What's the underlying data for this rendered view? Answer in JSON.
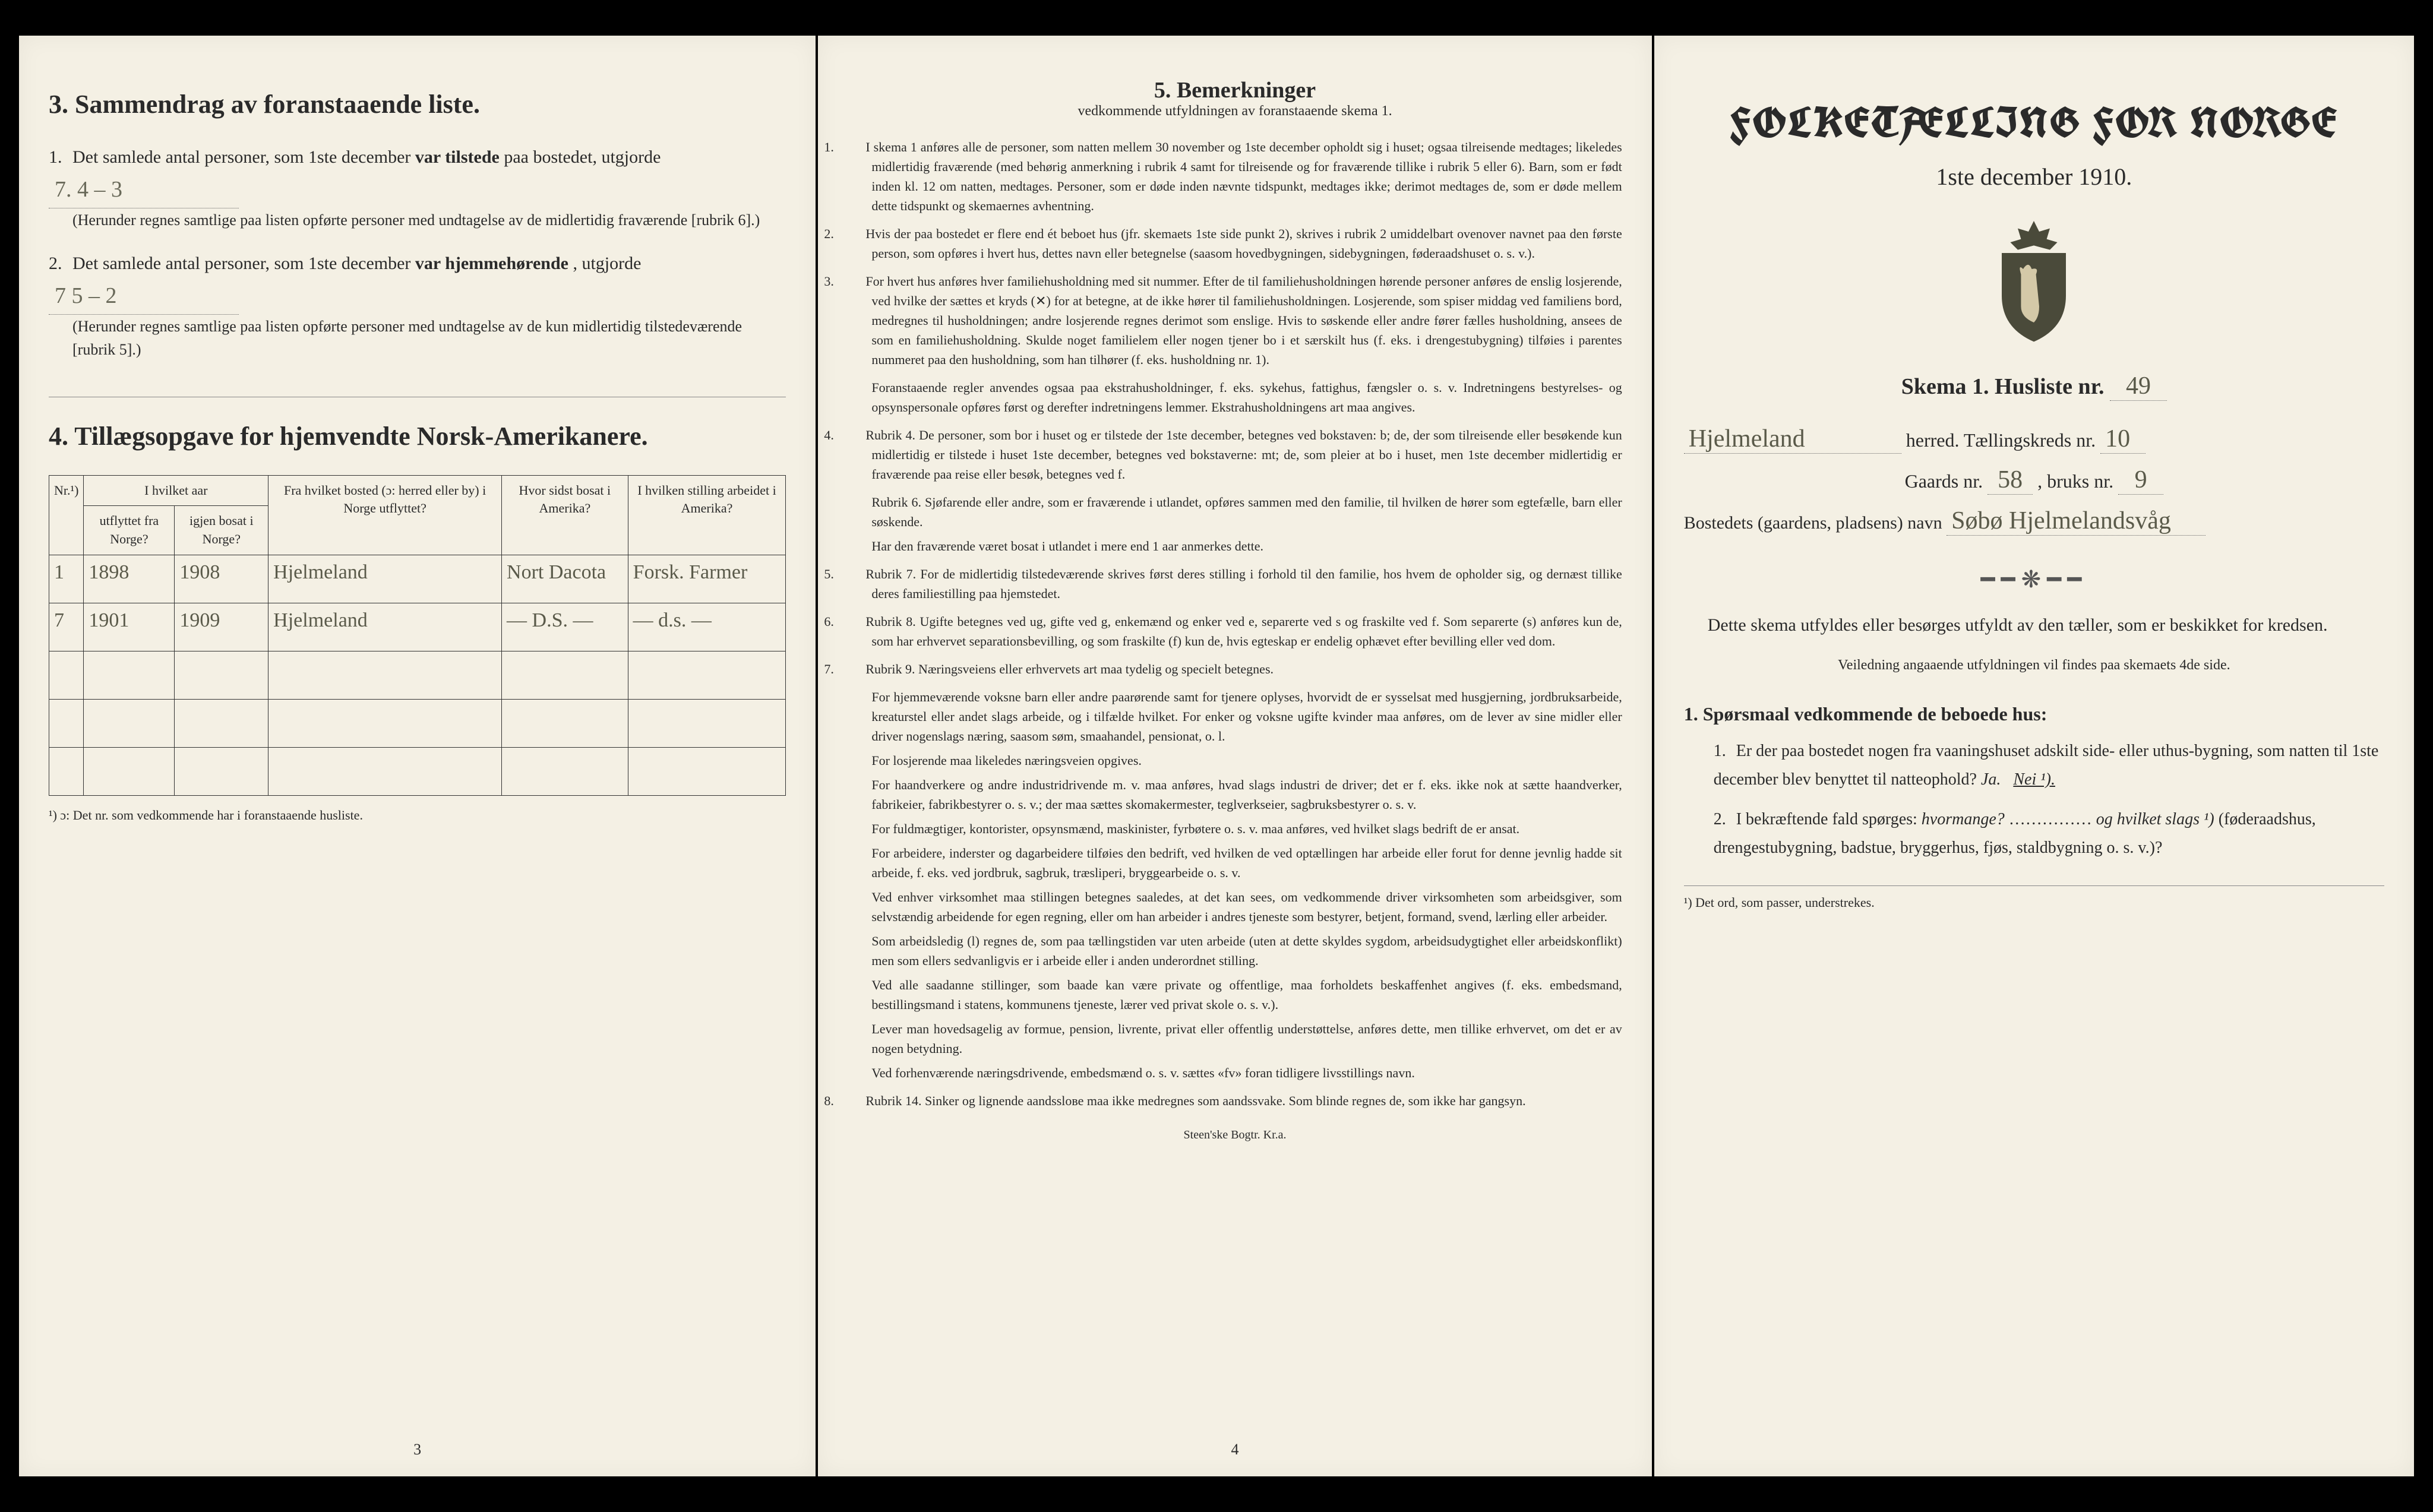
{
  "left": {
    "section3": {
      "number": "3.",
      "title": "Sammendrag av foranstaaende liste.",
      "q1": {
        "num": "1.",
        "text_a": "Det samlede antal personer, som 1ste december ",
        "bold": "var tilstede",
        "text_b": " paa bostedet, utgjorde",
        "value": "7.   4 – 3",
        "note": "(Herunder regnes samtlige paa listen opførte personer med undtagelse av de midlertidig fraværende [rubrik 6].)"
      },
      "q2": {
        "num": "2.",
        "text_a": "Det samlede antal personer, som 1ste december ",
        "bold": "var hjemmehørende",
        "text_b": ", utgjorde",
        "value": "7     5 – 2",
        "note": "(Herunder regnes samtlige paa listen opførte personer med undtagelse av de kun midlertidig tilstedeværende [rubrik 5].)"
      }
    },
    "section4": {
      "number": "4.",
      "title": "Tillægsopgave for hjemvendte Norsk-Amerikanere.",
      "headers": {
        "nr": "Nr.¹)",
        "aar": "I hvilket aar",
        "utflyttet": "utflyttet fra Norge?",
        "igjen": "igjen bosat i Norge?",
        "bosted": "Fra hvilket bosted (ɔ: herred eller by) i Norge utflyttet?",
        "amerika": "Hvor sidst bosat i Amerika?",
        "stilling": "I hvilken stilling arbeidet i Amerika?"
      },
      "rows": [
        {
          "nr": "1",
          "ut": "1898",
          "igjen": "1908",
          "bosted": "Hjelmeland",
          "amerika": "Nort Dacota",
          "stilling": "Forsk. Farmer"
        },
        {
          "nr": "7",
          "ut": "1901",
          "igjen": "1909",
          "bosted": "Hjelmeland",
          "amerika": "— D.S. —",
          "stilling": "— d.s. —"
        }
      ],
      "footnote": "¹) ɔ: Det nr. som vedkommende har i foranstaaende husliste."
    },
    "pagenum": "3"
  },
  "middle": {
    "title": "5.   Bemerkninger",
    "subtitle": "vedkommende utfyldningen av foranstaaende skema 1.",
    "items": [
      {
        "num": "1.",
        "text": "I skema 1 anføres alle de personer, som natten mellem 30 november og 1ste december opholdt sig i huset; ogsaa tilreisende medtages; likeledes midlertidig fraværende (med behørig anmerkning i rubrik 4 samt for tilreisende og for fraværende tillike i rubrik 5 eller 6). Barn, som er født inden kl. 12 om natten, medtages. Personer, som er døde inden nævnte tidspunkt, medtages ikke; derimot medtages de, som er døde mellem dette tidspunkt og skemaernes avhentning."
      },
      {
        "num": "2.",
        "text": "Hvis der paa bostedet er flere end ét beboet hus (jfr. skemaets 1ste side punkt 2), skrives i rubrik 2 umiddelbart ovenover navnet paa den første person, som opføres i hvert hus, dettes navn eller betegnelse (saasom hovedbygningen, sidebygningen, føderaadshuset o. s. v.)."
      },
      {
        "num": "3.",
        "text": "For hvert hus anføres hver familiehusholdning med sit nummer. Efter de til familiehusholdningen hørende personer anføres de enslig losjerende, ved hvilke der sættes et kryds (✕) for at betegne, at de ikke hører til familiehusholdningen. Losjerende, som spiser middag ved familiens bord, medregnes til husholdningen; andre losjerende regnes derimot som enslige. Hvis to søskende eller andre fører fælles husholdning, ansees de som en familiehusholdning. Skulde noget familielem eller nogen tjener bo i et særskilt hus (f. eks. i drengestubygning) tilføies i parentes nummeret paa den husholdning, som han tilhører (f. eks. husholdning nr. 1)."
      },
      {
        "num": "",
        "text": "Foranstaaende regler anvendes ogsaa paa ekstrahusholdninger, f. eks. sykehus, fattighus, fængsler o. s. v. Indretningens bestyrelses- og opsynspersonale opføres først og derefter indretningens lemmer. Ekstrahusholdningens art maa angives."
      },
      {
        "num": "4.",
        "text": "Rubrik 4. De personer, som bor i huset og er tilstede der 1ste december, betegnes ved bokstaven: b; de, der som tilreisende eller besøkende kun midlertidig er tilstede i huset 1ste december, betegnes ved bokstaverne: mt; de, som pleier at bo i huset, men 1ste december midlertidig er fraværende paa reise eller besøk, betegnes ved f."
      },
      {
        "num": "",
        "text": "Rubrik 6. Sjøfarende eller andre, som er fraværende i utlandet, opføres sammen med den familie, til hvilken de hører som egtefælle, barn eller søskende."
      },
      {
        "num": "",
        "text": "Har den fraværende været bosat i utlandet i mere end 1 aar anmerkes dette."
      },
      {
        "num": "5.",
        "text": "Rubrik 7. For de midlertidig tilstedeværende skrives først deres stilling i forhold til den familie, hos hvem de opholder sig, og dernæst tillike deres familiestilling paa hjemstedet."
      },
      {
        "num": "6.",
        "text": "Rubrik 8. Ugifte betegnes ved ug, gifte ved g, enkemænd og enker ved e, separerte ved s og fraskilte ved f. Som separerte (s) anføres kun de, som har erhvervet separationsbevilling, og som fraskilte (f) kun de, hvis egteskap er endelig ophævet efter bevilling eller ved dom."
      },
      {
        "num": "7.",
        "text": "Rubrik 9. Næringsveiens eller erhvervets art maa tydelig og specielt betegnes."
      },
      {
        "num": "",
        "text": "For hjemmeværende voksne barn eller andre paarørende samt for tjenere oplyses, hvorvidt de er sysselsat med husgjerning, jordbruksarbeide, kreaturstel eller andet slags arbeide, og i tilfælde hvilket. For enker og voksne ugifte kvinder maa anføres, om de lever av sine midler eller driver nogenslags næring, saasom søm, smaahandel, pensionat, o. l."
      },
      {
        "num": "",
        "text": "For losjerende maa likeledes næringsveien opgives."
      },
      {
        "num": "",
        "text": "For haandverkere og andre industridrivende m. v. maa anføres, hvad slags industri de driver; det er f. eks. ikke nok at sætte haandverker, fabrikeier, fabrikbestyrer o. s. v.; der maa sættes skomakermester, teglverkseier, sagbruksbestyrer o. s. v."
      },
      {
        "num": "",
        "text": "For fuldmægtiger, kontorister, opsynsmænd, maskinister, fyrbøtere o. s. v. maa anføres, ved hvilket slags bedrift de er ansat."
      },
      {
        "num": "",
        "text": "For arbeidere, inderster og dagarbeidere tilføies den bedrift, ved hvilken de ved optællingen har arbeide eller forut for denne jevnlig hadde sit arbeide, f. eks. ved jordbruk, sagbruk, træsliperi, bryggearbeide o. s. v."
      },
      {
        "num": "",
        "text": "Ved enhver virksomhet maa stillingen betegnes saaledes, at det kan sees, om vedkommende driver virksomheten som arbeidsgiver, som selvstændig arbeidende for egen regning, eller om han arbeider i andres tjeneste som bestyrer, betjent, formand, svend, lærling eller arbeider."
      },
      {
        "num": "",
        "text": "Som arbeidsledig (l) regnes de, som paa tællingstiden var uten arbeide (uten at dette skyldes sygdom, arbeidsudygtighet eller arbeidskonflikt) men som ellers sedvanligvis er i arbeide eller i anden underordnet stilling."
      },
      {
        "num": "",
        "text": "Ved alle saadanne stillinger, som baade kan være private og offentlige, maa forholdets beskaffenhet angives (f. eks. embedsmand, bestillingsmand i statens, kommunens tjeneste, lærer ved privat skole o. s. v.)."
      },
      {
        "num": "",
        "text": "Lever man hovedsagelig av formue, pension, livrente, privat eller offentlig understøttelse, anføres dette, men tillike erhvervet, om det er av nogen betydning."
      },
      {
        "num": "",
        "text": "Ved forhenværende næringsdrivende, embedsmænd o. s. v. sættes «fv» foran tidligere livsstillings navn."
      },
      {
        "num": "8.",
        "text": "Rubrik 14. Sinker og lignende aandsslове maa ikke medregnes som aandssvake. Som blinde regnes de, som ikke har gangsyn."
      }
    ],
    "pagenum": "4",
    "imprint": "Steen'ske Bogtr. Kr.a."
  },
  "right": {
    "main_title": "FOLKETÆLLING FOR NORGE",
    "date": "1ste december 1910.",
    "skema_label": "Skema 1.  Husliste nr.",
    "husliste_nr": "49",
    "herred_name": "Hjelmeland",
    "herred_label": "herred.  Tællingskreds nr.",
    "kreds_nr": "10",
    "gaards_label_a": "Gaards nr.",
    "gaards_nr": "58",
    "bruks_label": ", bruks nr.",
    "bruks_nr": "9",
    "bosted_label": "Bostedets (gaardens, pladsens) navn",
    "bosted_name": "Søbø Hjelmelandsvåg",
    "instruction": "Dette skema utfyldes eller besørges utfyldt av den tæller, som er beskikket for kredsen.",
    "small_instruction": "Veiledning angaaende utfyldningen vil findes paa skemaets 4de side.",
    "q1": {
      "num": "1.",
      "title": "Spørsmaal vedkommende de beboede hus:",
      "sub1": {
        "num": "1.",
        "text": "Er der paa bostedet nogen fra vaaningshuset adskilt side- eller uthus-bygning, som natten til 1ste december blev benyttet til natteophold?  ",
        "ja": "Ja.",
        "nei": "Nei ¹)."
      },
      "sub2": {
        "num": "2.",
        "text_a": "I bekræftende fald spørges: ",
        "italic_a": "hvormange?",
        "text_b": " …………… ",
        "italic_b": "og hvilket slags ¹)",
        "text_c": " (føderaadshus, drengestubygning, badstue, bryggerhus, fjøs, staldbygning o. s. v.)?"
      }
    },
    "footnote": "¹) Det ord, som passer, understrekes."
  }
}
